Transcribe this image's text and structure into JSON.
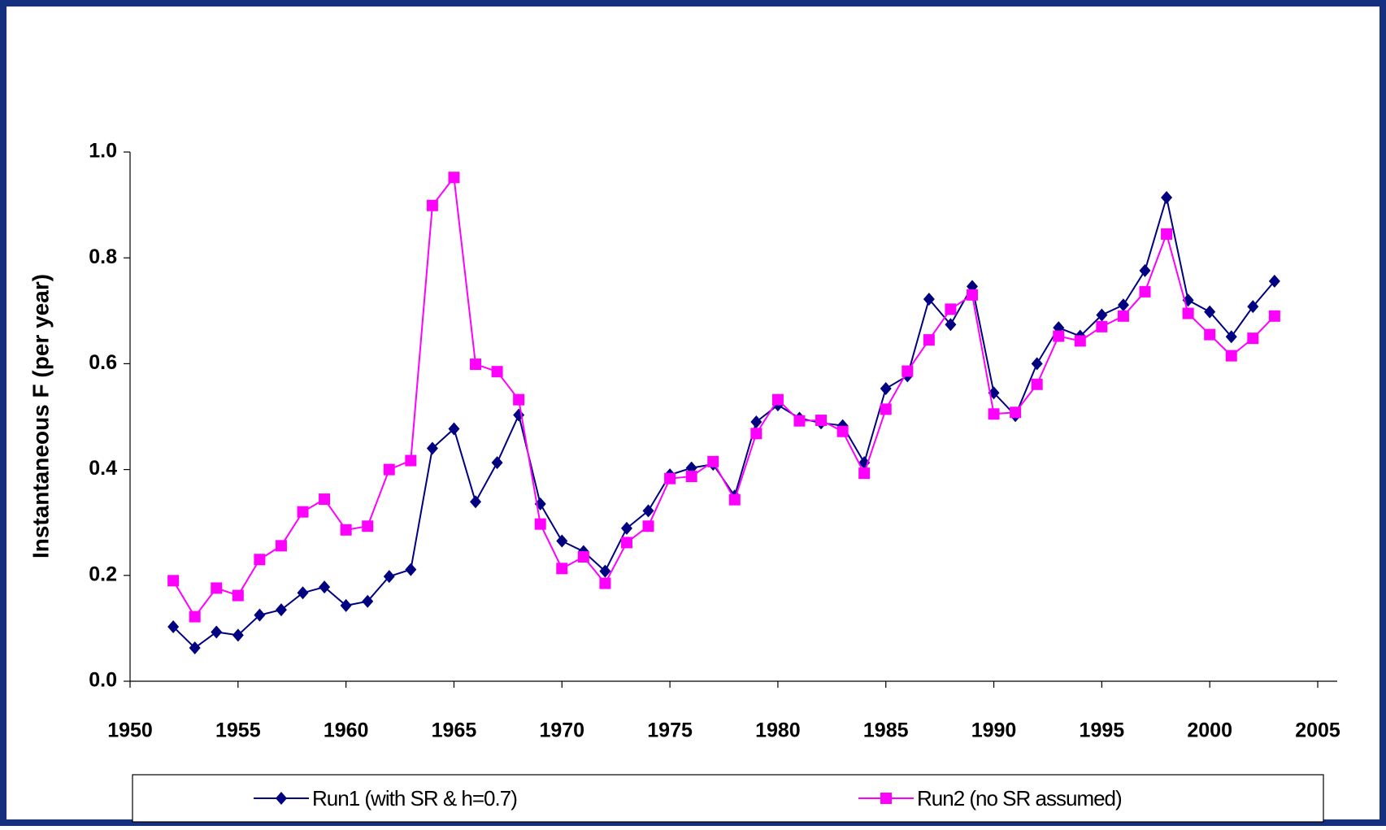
{
  "chart_data": {
    "type": "line",
    "y_label": "Instantaneous F (per year)",
    "x": [
      1952,
      1953,
      1954,
      1955,
      1956,
      1957,
      1958,
      1959,
      1960,
      1961,
      1962,
      1963,
      1964,
      1965,
      1966,
      1967,
      1968,
      1969,
      1970,
      1971,
      1972,
      1973,
      1974,
      1975,
      1976,
      1977,
      1978,
      1979,
      1980,
      1981,
      1982,
      1983,
      1984,
      1985,
      1986,
      1987,
      1988,
      1989,
      1990,
      1991,
      1992,
      1993,
      1994,
      1995,
      1996,
      1997,
      1998,
      1999,
      2000,
      2001,
      2002,
      2003
    ],
    "series": [
      {
        "name": "Run1 (with SR & h=0.7)",
        "color": "#000080",
        "marker": "diamond",
        "values": [
          0.103,
          0.063,
          0.093,
          0.087,
          0.125,
          0.135,
          0.167,
          0.178,
          0.143,
          0.151,
          0.198,
          0.211,
          0.44,
          0.477,
          0.339,
          0.413,
          0.503,
          0.335,
          0.265,
          0.245,
          0.208,
          0.289,
          0.322,
          0.39,
          0.403,
          0.41,
          0.35,
          0.49,
          0.522,
          0.497,
          0.488,
          0.483,
          0.413,
          0.553,
          0.577,
          0.722,
          0.674,
          0.746,
          0.545,
          0.502,
          0.6,
          0.668,
          0.652,
          0.692,
          0.711,
          0.776,
          0.914,
          0.72,
          0.698,
          0.651,
          0.708,
          0.756
        ]
      },
      {
        "name": "Run2 (no SR assumed)",
        "color": "#ff00ff",
        "marker": "square",
        "values": [
          0.19,
          0.122,
          0.176,
          0.162,
          0.23,
          0.256,
          0.32,
          0.344,
          0.286,
          0.293,
          0.4,
          0.417,
          0.899,
          0.952,
          0.599,
          0.585,
          0.532,
          0.297,
          0.213,
          0.235,
          0.185,
          0.262,
          0.293,
          0.383,
          0.387,
          0.415,
          0.343,
          0.468,
          0.532,
          0.492,
          0.493,
          0.472,
          0.393,
          0.514,
          0.586,
          0.645,
          0.703,
          0.73,
          0.505,
          0.508,
          0.561,
          0.652,
          0.643,
          0.67,
          0.69,
          0.736,
          0.845,
          0.695,
          0.655,
          0.615,
          0.648,
          0.69
        ]
      }
    ],
    "xlim": [
      1950,
      2005
    ],
    "xticks": [
      1950,
      1955,
      1960,
      1965,
      1970,
      1975,
      1980,
      1985,
      1990,
      1995,
      2000,
      2005
    ],
    "ylim": [
      0,
      1
    ],
    "yticks": [
      {
        "value": 0,
        "label": "0.0"
      },
      0.2,
      0.4,
      0.6,
      0.8,
      {
        "value": 1,
        "label": "1.0"
      }
    ],
    "legend": "bottom"
  }
}
